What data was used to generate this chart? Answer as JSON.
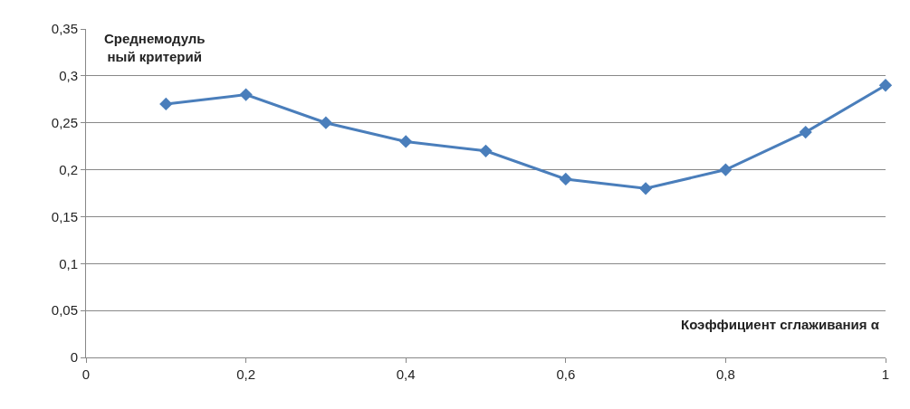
{
  "chart_data": {
    "type": "line",
    "xlabel": "Коэффициент сглаживания α",
    "ylabel": "Среднемодуль\nный критерий",
    "x": [
      0.1,
      0.2,
      0.3,
      0.4,
      0.5,
      0.6,
      0.7,
      0.8,
      0.9,
      1
    ],
    "series": [
      {
        "color": "#4a7ebb",
        "values": [
          0.27,
          0.28,
          0.25,
          0.23,
          0.22,
          0.19,
          0.18,
          0.2,
          0.24,
          0.29
        ]
      }
    ],
    "xlim": [
      0,
      1
    ],
    "xticks": [
      0,
      {
        "value": 0.2,
        "label": "0,2"
      },
      {
        "value": 0.4,
        "label": "0,4"
      },
      {
        "value": 0.6,
        "label": "0,6"
      },
      {
        "value": 0.8,
        "label": "0,8"
      },
      1
    ],
    "ylim": [
      0,
      0.35
    ],
    "yticks": [
      0,
      {
        "value": 0.05,
        "label": "0,05"
      },
      {
        "value": 0.1,
        "label": "0,1"
      },
      {
        "value": 0.15,
        "label": "0,15"
      },
      {
        "value": 0.2,
        "label": "0,2"
      },
      {
        "value": 0.25,
        "label": "0,25"
      },
      {
        "value": 0.3,
        "label": "0,3"
      },
      {
        "value": 0.35,
        "label": "0,35"
      }
    ],
    "grid": "y",
    "marker": "diamond",
    "line_style": "solid",
    "legend": false
  }
}
